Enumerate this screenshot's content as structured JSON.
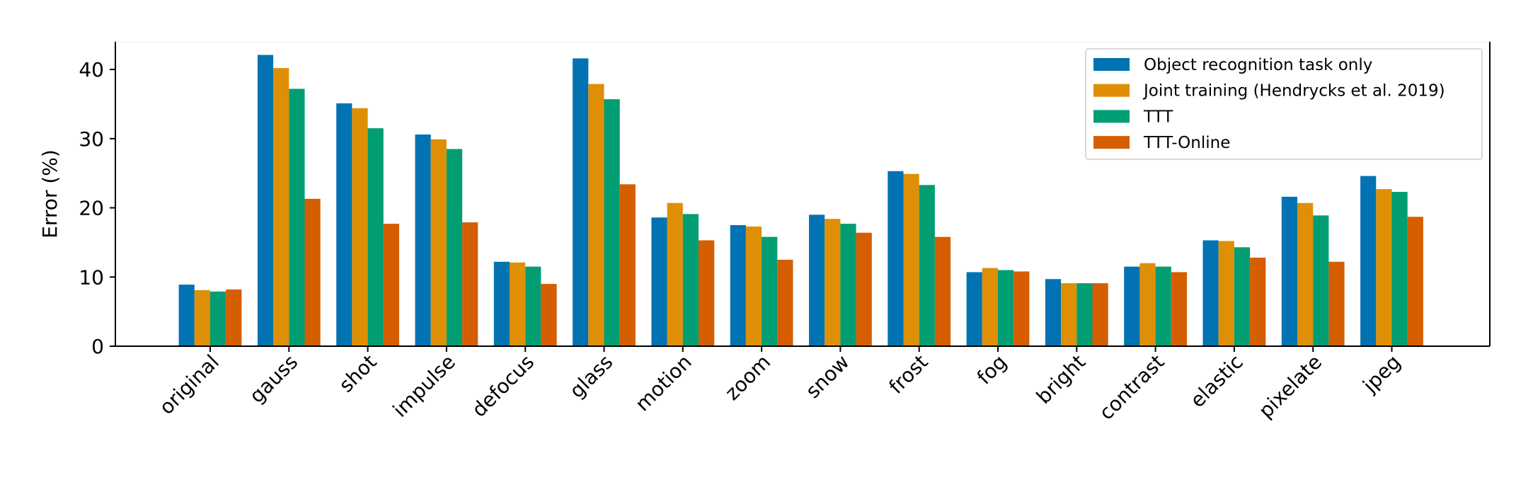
{
  "chart_data": {
    "type": "bar",
    "y_label": "Error (%)",
    "categories": [
      "original",
      "gauss",
      "shot",
      "impulse",
      "defocus",
      "glass",
      "motion",
      "zoom",
      "snow",
      "frost",
      "fog",
      "bright",
      "contrast",
      "elastic",
      "pixelate",
      "jpeg"
    ],
    "series": [
      {
        "name": "Object recognition task only",
        "color": "#0173b2",
        "values": [
          8.9,
          42.1,
          35.1,
          30.6,
          12.2,
          41.6,
          18.6,
          17.5,
          19.0,
          25.3,
          10.7,
          9.7,
          11.5,
          15.3,
          21.6,
          24.6
        ]
      },
      {
        "name": "Joint training (Hendrycks et al. 2019)",
        "color": "#de8f05",
        "values": [
          8.1,
          40.2,
          34.4,
          29.9,
          12.1,
          37.9,
          20.7,
          17.3,
          18.4,
          24.9,
          11.3,
          9.1,
          12.0,
          15.2,
          20.7,
          22.7
        ]
      },
      {
        "name": "TTT",
        "color": "#029e73",
        "values": [
          7.9,
          37.2,
          31.5,
          28.5,
          11.5,
          35.7,
          19.1,
          15.8,
          17.7,
          23.3,
          11.0,
          9.1,
          11.5,
          14.3,
          18.9,
          22.3
        ]
      },
      {
        "name": "TTT-Online",
        "color": "#d55e00",
        "values": [
          8.2,
          21.3,
          17.7,
          17.9,
          9.0,
          23.4,
          15.3,
          12.5,
          16.4,
          15.8,
          10.8,
          9.1,
          10.7,
          12.8,
          12.2,
          18.7
        ]
      }
    ],
    "ylim": [
      0,
      44
    ],
    "yticks": [
      0,
      10,
      20,
      30,
      40
    ],
    "legend": "upper right"
  }
}
